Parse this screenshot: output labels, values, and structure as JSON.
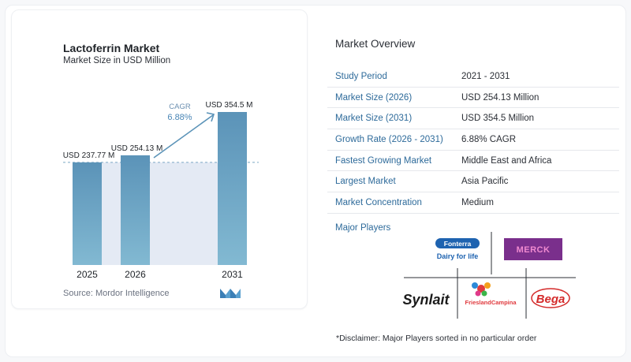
{
  "chart_data": {
    "type": "bar",
    "title": "Lactoferrin Market",
    "subtitle": "Market Size in USD Million",
    "categories": [
      "2025",
      "2026",
      "2031"
    ],
    "values": [
      237.77,
      254.13,
      354.5
    ],
    "value_labels": [
      "USD 237.77 M",
      "USD 254.13 M",
      "USD 354.5 M"
    ],
    "cagr_label": "CAGR",
    "cagr_value": "6.88%",
    "bar_color": "#5b93b8",
    "bar_color_light": "#7db3cf",
    "shade_color": "#e4eaf4"
  },
  "source": "Source:  Mordor Intelligence",
  "overview": {
    "title": "Market Overview",
    "rows": [
      {
        "key": "Study Period",
        "value": "2021 - 2031"
      },
      {
        "key": "Market Size (2026)",
        "value": "USD 254.13 Million"
      },
      {
        "key": "Market Size (2031)",
        "value": "USD 354.5 Million"
      },
      {
        "key": "Growth Rate (2026 - 2031)",
        "value": "6.88% CAGR"
      },
      {
        "key": "Fastest Growing Market",
        "value": "Middle East and Africa"
      },
      {
        "key": "Largest Market",
        "value": "Asia Pacific"
      },
      {
        "key": "Market Concentration",
        "value": "Medium"
      }
    ],
    "players_title": "Major Players",
    "players": [
      "Fonterra",
      "Dairy for life",
      "MERCK",
      "Synlait",
      "FrieslandCampina",
      "Bega"
    ],
    "disclaimer": "*Disclaimer: Major Players sorted in no particular order"
  }
}
